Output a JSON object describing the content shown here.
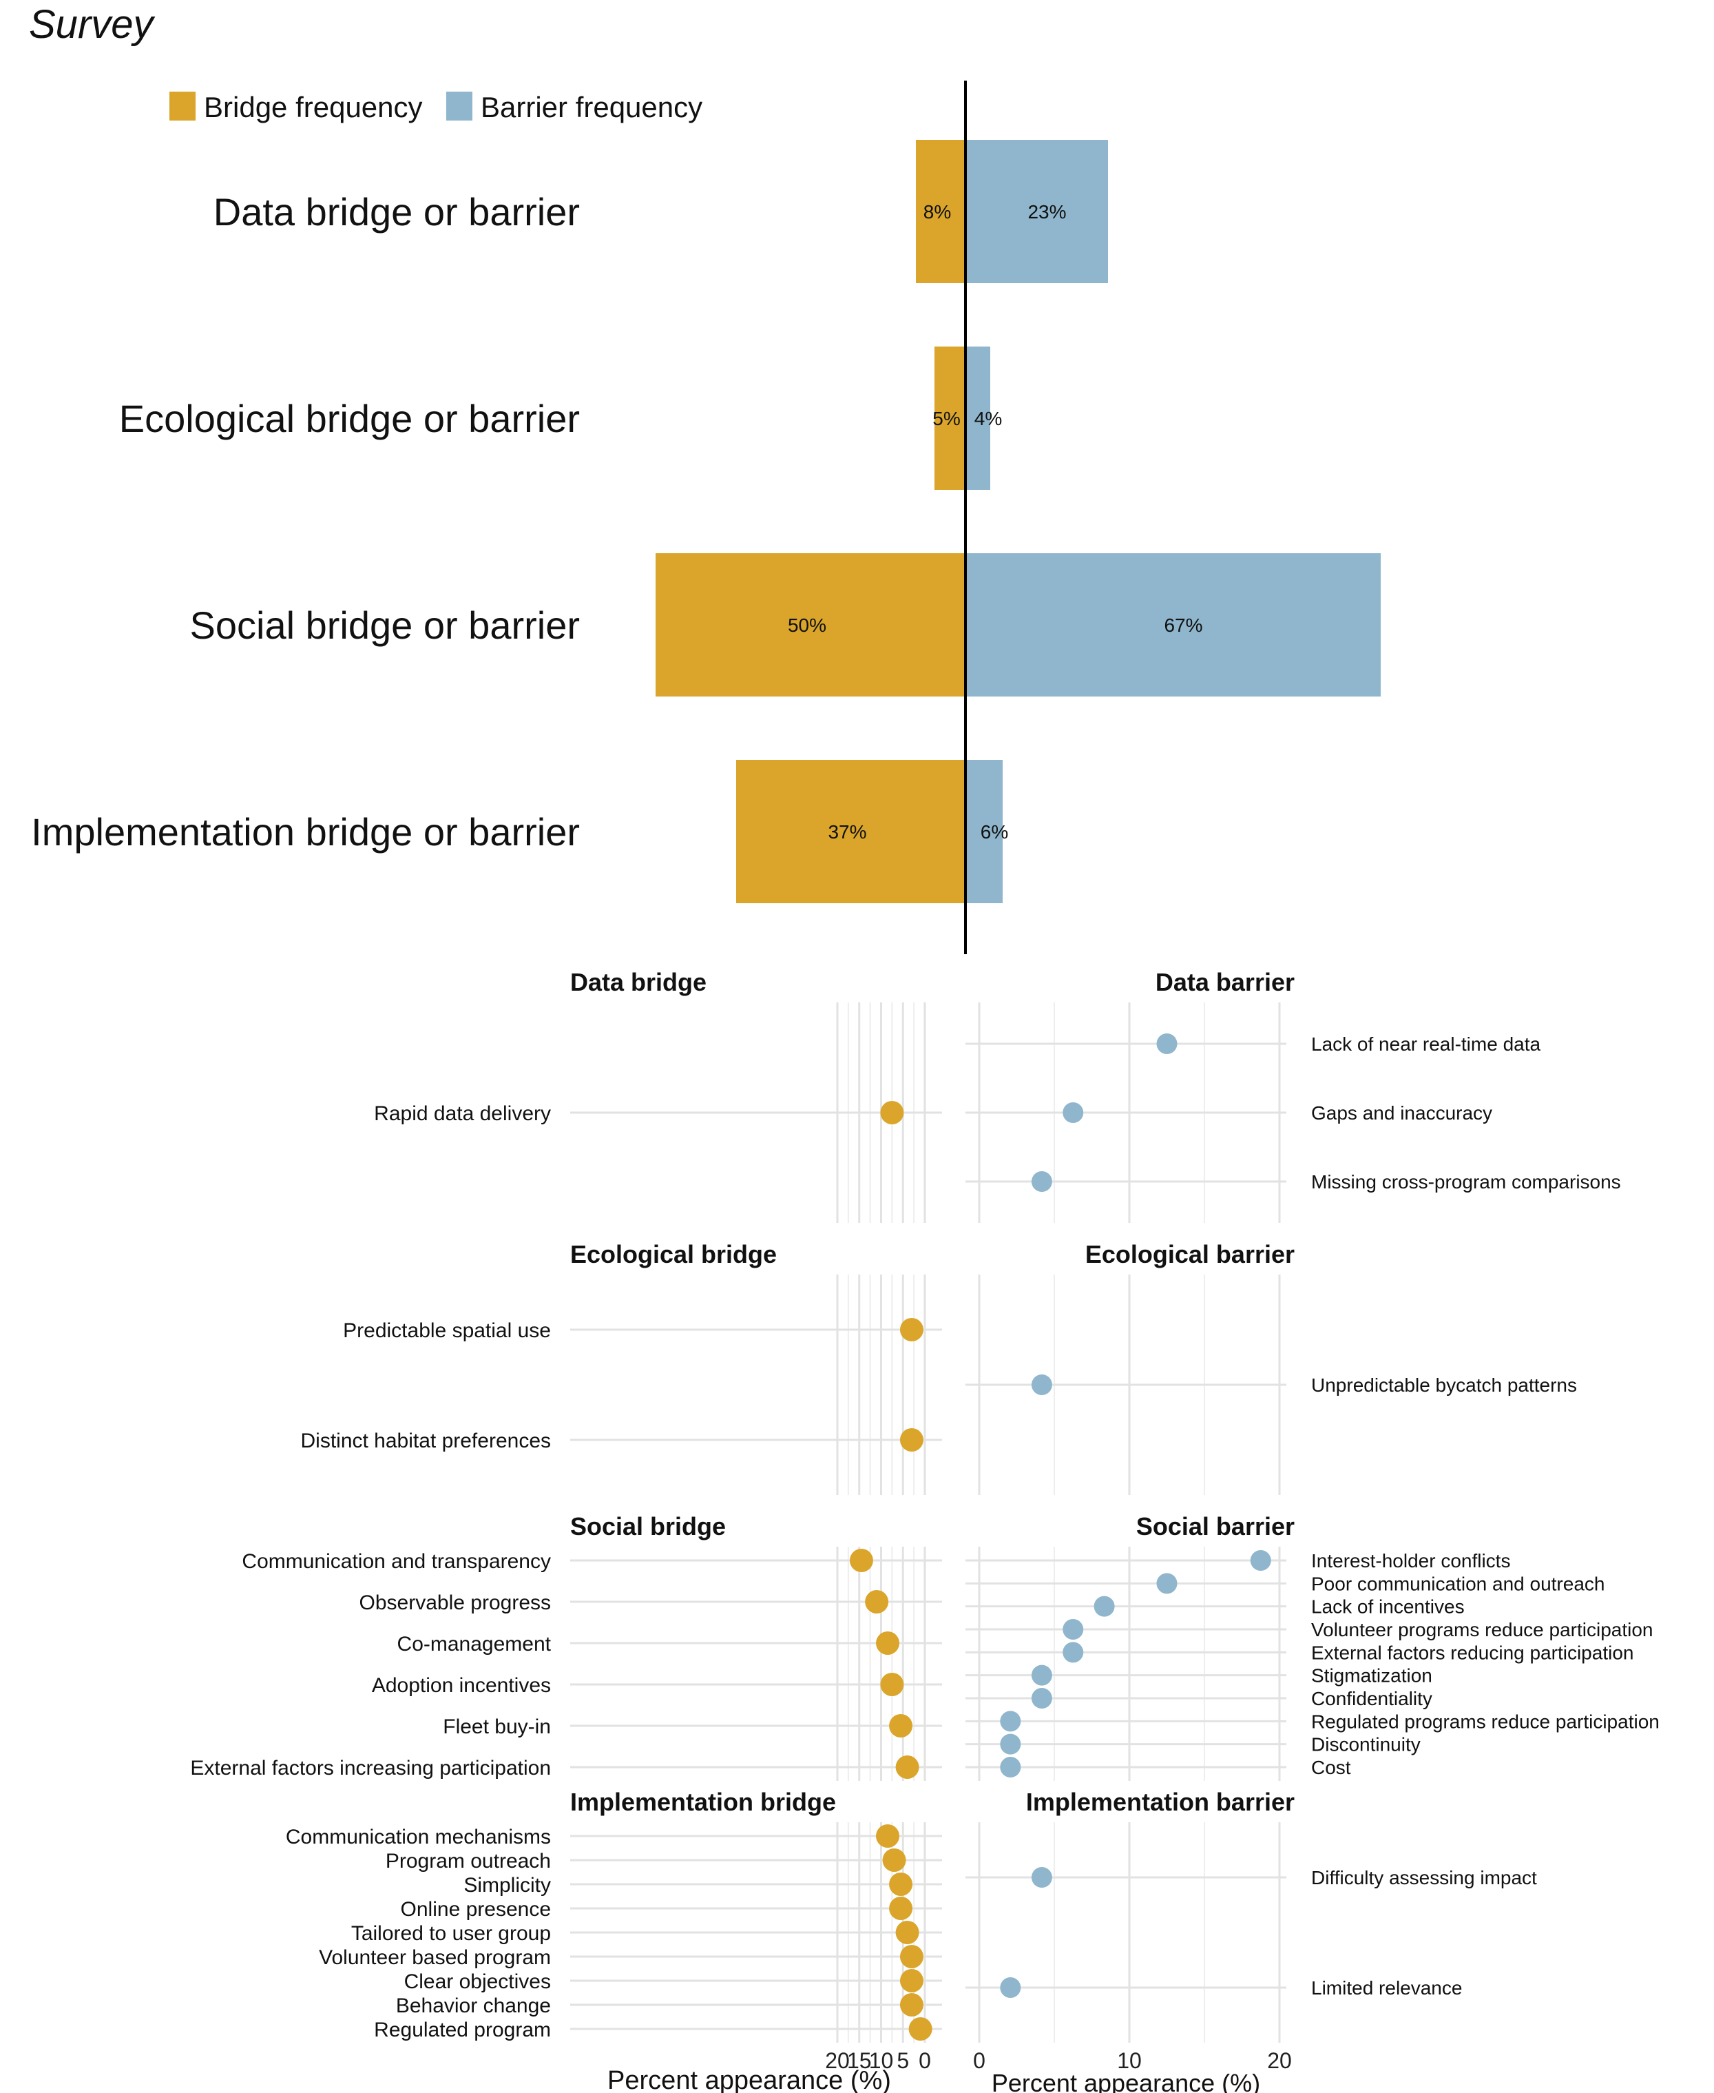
{
  "title": "Survey",
  "colors": {
    "bridge": "#DAA52A",
    "barrier": "#8FB6CC"
  },
  "legend": {
    "bridge": "Bridge frequency",
    "barrier": "Barrier frequency"
  },
  "chart_data": [
    {
      "type": "bar",
      "orientation": "diverging-horizontal",
      "categories": [
        "Data bridge or barrier",
        "Ecological bridge or barrier",
        "Social bridge or barrier",
        "Implementation bridge or barrier"
      ],
      "series": [
        {
          "name": "Bridge frequency",
          "values": [
            8,
            5,
            50,
            37
          ],
          "labels": [
            "8%",
            "5%",
            "50%",
            "37%"
          ]
        },
        {
          "name": "Barrier frequency",
          "values": [
            23,
            4,
            67,
            6
          ],
          "labels": [
            "23%",
            "4%",
            "67%",
            "6%"
          ]
        }
      ],
      "legend_position": "top-left"
    },
    {
      "type": "scatter",
      "panels": [
        {
          "title": "Data bridge",
          "side": "bridge",
          "items": [
            {
              "label": "Rapid data delivery",
              "value": 7.5
            }
          ]
        },
        {
          "title": "Data barrier",
          "side": "barrier",
          "items": [
            {
              "label": "Lack of near real-time data",
              "value": 12.5
            },
            {
              "label": "Gaps and inaccuracy",
              "value": 6.25
            },
            {
              "label": "Missing cross-program comparisons",
              "value": 4.17
            }
          ]
        },
        {
          "title": "Ecological bridge",
          "side": "bridge",
          "items": [
            {
              "label": "Predictable spatial use",
              "value": 3
            },
            {
              "label": "Distinct habitat preferences",
              "value": 3
            }
          ]
        },
        {
          "title": "Ecological barrier",
          "side": "barrier",
          "items": [
            {
              "label": "Unpredictable bycatch patterns",
              "value": 4.17
            }
          ]
        },
        {
          "title": "Social bridge",
          "side": "bridge",
          "items": [
            {
              "label": "Communication and transparency",
              "value": 14.5
            },
            {
              "label": "Observable progress",
              "value": 11
            },
            {
              "label": "Co-management",
              "value": 8.5
            },
            {
              "label": "Adoption incentives",
              "value": 7.5
            },
            {
              "label": "Fleet buy-in",
              "value": 5.5
            },
            {
              "label": "External factors increasing participation",
              "value": 4
            }
          ]
        },
        {
          "title": "Social barrier",
          "side": "barrier",
          "items": [
            {
              "label": "Interest-holder conflicts",
              "value": 18.75
            },
            {
              "label": "Poor communication and outreach",
              "value": 12.5
            },
            {
              "label": "Lack of incentives",
              "value": 8.33
            },
            {
              "label": "Volunteer programs reduce participation",
              "value": 6.25
            },
            {
              "label": "External factors reducing participation",
              "value": 6.25
            },
            {
              "label": "Stigmatization",
              "value": 4.17
            },
            {
              "label": "Confidentiality",
              "value": 4.17
            },
            {
              "label": "Regulated programs reduce participation",
              "value": 2.08
            },
            {
              "label": "Discontinuity",
              "value": 2.08
            },
            {
              "label": "Cost",
              "value": 2.08
            }
          ]
        },
        {
          "title": "Implementation bridge",
          "side": "bridge",
          "items": [
            {
              "label": "Communication mechanisms",
              "value": 8.5
            },
            {
              "label": "Program outreach",
              "value": 7
            },
            {
              "label": "Simplicity",
              "value": 5.5
            },
            {
              "label": "Online presence",
              "value": 5.5
            },
            {
              "label": "Tailored to user group",
              "value": 4
            },
            {
              "label": "Volunteer based program",
              "value": 3
            },
            {
              "label": "Clear objectives",
              "value": 3
            },
            {
              "label": "Behavior change",
              "value": 3
            },
            {
              "label": "Regulated program",
              "value": 1
            }
          ]
        },
        {
          "title": "Implementation barrier",
          "side": "barrier",
          "items": [
            {
              "label": "Difficulty assessing impact",
              "value": 4.17
            },
            {
              "label": "Limited relevance",
              "value": 2.08
            }
          ]
        }
      ],
      "bridge_axis": {
        "xlabel": "Percent appearance (%)",
        "ticks": [
          "20",
          "15",
          "10",
          "5",
          "0"
        ],
        "reversed": true
      },
      "barrier_axis": {
        "xlabel": "Percent appearance (%)",
        "ticks": [
          "0",
          "10",
          "20"
        ]
      }
    }
  ]
}
